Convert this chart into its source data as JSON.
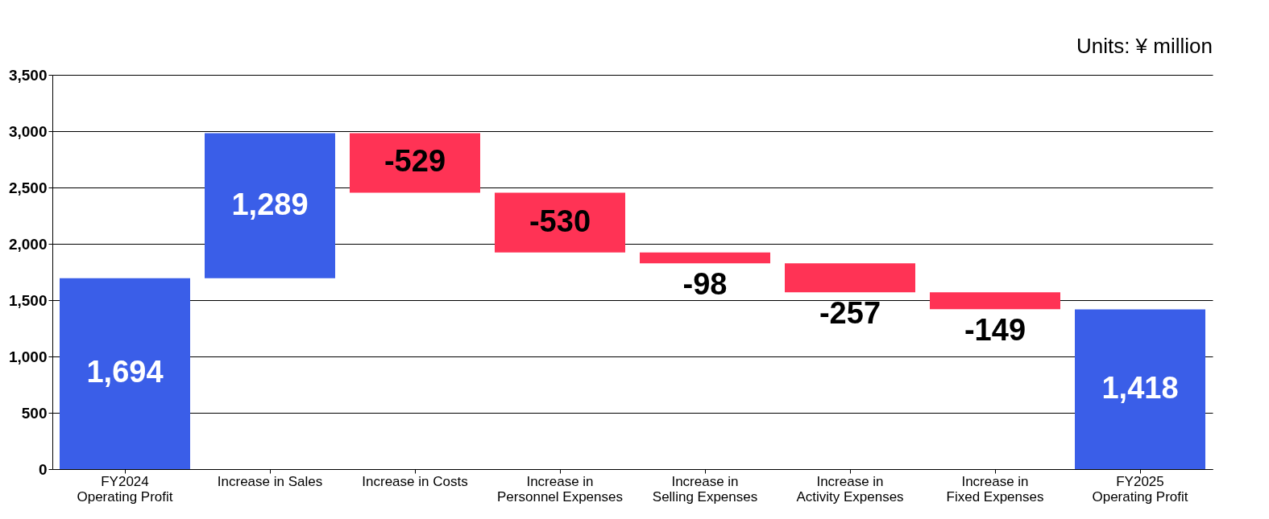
{
  "chart_data": {
    "type": "bar",
    "categories": [
      "FY2024\nOperating Profit",
      "Increase in Sales",
      "Increase in Costs",
      "Increase in\nPersonnel Expenses",
      "Increase in\nSelling Expenses",
      "Increase in\nActivity Expenses",
      "Increase in\nFixed Expenses",
      "FY2025\nOperating Profit"
    ],
    "values": [
      1694,
      1289,
      -529,
      -530,
      -98,
      -257,
      -149,
      1418
    ],
    "base": [
      0,
      1694,
      2983,
      2454,
      1924,
      1826,
      1569,
      0
    ],
    "colors": [
      "#3a5ee8",
      "#3a5ee8",
      "#ff3355",
      "#ff3355",
      "#ff3355",
      "#ff3355",
      "#ff3355",
      "#3a5ee8"
    ],
    "value_labels": [
      "1,694",
      "1,289",
      "-529",
      "-530",
      "-98",
      "-257",
      "-149",
      "1,418"
    ],
    "ylim": [
      0,
      3500
    ],
    "yticks": [
      {
        "value": 0,
        "label": "0"
      },
      {
        "value": 500,
        "label": "500"
      },
      {
        "value": 1000,
        "label": "1,000"
      },
      {
        "value": 1500,
        "label": "1,500"
      },
      {
        "value": 2000,
        "label": "2,000"
      },
      {
        "value": 2500,
        "label": "2,500"
      },
      {
        "value": 3000,
        "label": "3,000"
      },
      {
        "value": 3500,
        "label": "3,500"
      }
    ],
    "grid": "y",
    "annotations": [
      "Units: ¥ million"
    ]
  }
}
